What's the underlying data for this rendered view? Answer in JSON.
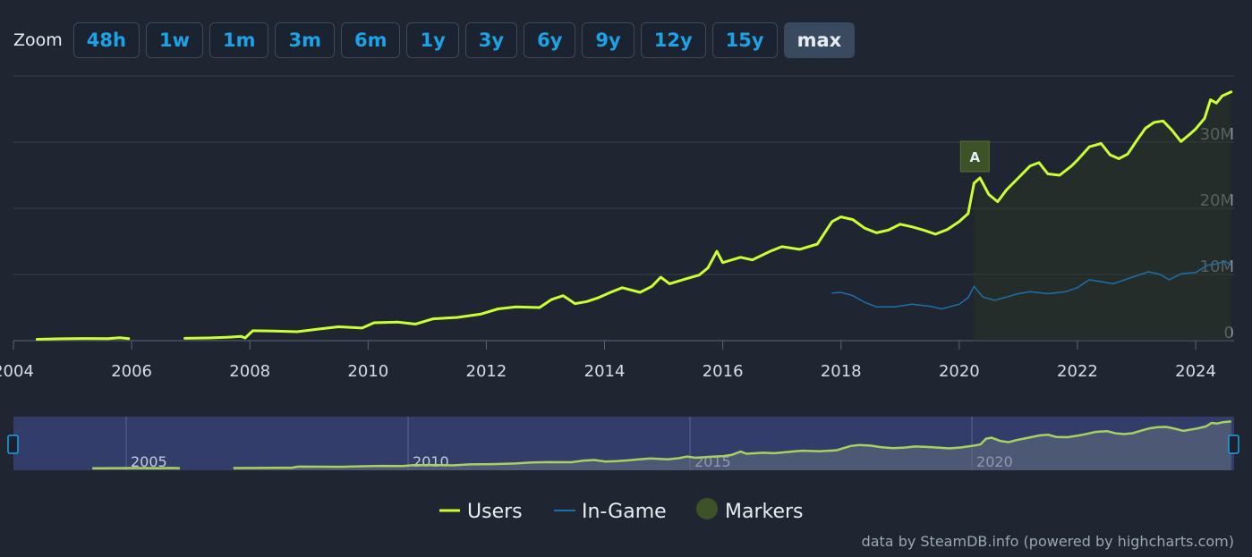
{
  "zoom": {
    "label": "Zoom",
    "buttons": [
      "48h",
      "1w",
      "1m",
      "3m",
      "6m",
      "1y",
      "3y",
      "6y",
      "9y",
      "12y",
      "15y",
      "max"
    ],
    "active": "max"
  },
  "colors": {
    "background": "#1f2631",
    "users": "#ccff33",
    "ingame": "#1f6fa8",
    "marker": "#3e5227",
    "navigator_bg": "#323d6a",
    "navigator_line": "#a9d160",
    "grid": "#3a4350",
    "zoom_text": "#1ea2e6"
  },
  "chart_data": {
    "type": "line",
    "xlim": [
      2004,
      2024.65
    ],
    "ylim": [
      0,
      40000000
    ],
    "x_ticks": [
      "2004",
      "2006",
      "2008",
      "2010",
      "2012",
      "2014",
      "2016",
      "2018",
      "2020",
      "2022",
      "2024"
    ],
    "y_ticks": [
      "0",
      "10M",
      "20M",
      "30M"
    ],
    "series": [
      {
        "name": "Users",
        "segments": [
          [
            [
              2004.4,
              0.2
            ],
            [
              2004.8,
              0.28
            ],
            [
              2005.2,
              0.33
            ],
            [
              2005.6,
              0.3
            ],
            [
              2005.8,
              0.45
            ],
            [
              2005.95,
              0.3
            ]
          ],
          [
            [
              2006.9,
              0.35
            ],
            [
              2007.3,
              0.4
            ],
            [
              2007.6,
              0.5
            ],
            [
              2007.85,
              0.65
            ],
            [
              2007.92,
              0.4
            ],
            [
              2008.05,
              1.5
            ],
            [
              2008.4,
              1.45
            ],
            [
              2008.8,
              1.35
            ],
            [
              2009.2,
              1.8
            ],
            [
              2009.5,
              2.1
            ],
            [
              2009.9,
              1.9
            ],
            [
              2010.1,
              2.7
            ],
            [
              2010.5,
              2.8
            ],
            [
              2010.8,
              2.5
            ],
            [
              2011.1,
              3.3
            ],
            [
              2011.5,
              3.5
            ],
            [
              2011.9,
              4.0
            ],
            [
              2012.2,
              4.8
            ],
            [
              2012.5,
              5.1
            ],
            [
              2012.9,
              5.0
            ],
            [
              2013.1,
              6.2
            ],
            [
              2013.3,
              6.8
            ],
            [
              2013.5,
              5.6
            ],
            [
              2013.7,
              5.9
            ],
            [
              2013.9,
              6.5
            ],
            [
              2014.1,
              7.3
            ],
            [
              2014.3,
              8.0
            ],
            [
              2014.6,
              7.3
            ],
            [
              2014.8,
              8.2
            ],
            [
              2014.95,
              9.6
            ],
            [
              2015.1,
              8.6
            ],
            [
              2015.4,
              9.4
            ],
            [
              2015.6,
              9.9
            ],
            [
              2015.75,
              11.0
            ],
            [
              2015.9,
              13.5
            ],
            [
              2016.0,
              11.8
            ],
            [
              2016.3,
              12.6
            ],
            [
              2016.5,
              12.2
            ],
            [
              2016.8,
              13.5
            ],
            [
              2017.0,
              14.2
            ],
            [
              2017.3,
              13.8
            ],
            [
              2017.6,
              14.6
            ],
            [
              2017.85,
              18.0
            ],
            [
              2018.0,
              18.7
            ],
            [
              2018.2,
              18.3
            ],
            [
              2018.4,
              17.0
            ],
            [
              2018.6,
              16.3
            ],
            [
              2018.8,
              16.7
            ],
            [
              2019.0,
              17.6
            ],
            [
              2019.2,
              17.2
            ],
            [
              2019.4,
              16.7
            ],
            [
              2019.6,
              16.1
            ],
            [
              2019.8,
              16.8
            ],
            [
              2020.0,
              18.0
            ],
            [
              2020.15,
              19.2
            ],
            [
              2020.25,
              23.8
            ],
            [
              2020.35,
              24.6
            ],
            [
              2020.5,
              22.1
            ],
            [
              2020.65,
              21.0
            ],
            [
              2020.8,
              22.8
            ],
            [
              2021.0,
              24.6
            ],
            [
              2021.2,
              26.4
            ],
            [
              2021.35,
              26.9
            ],
            [
              2021.5,
              25.2
            ],
            [
              2021.7,
              25.0
            ],
            [
              2021.9,
              26.4
            ],
            [
              2022.0,
              27.3
            ],
            [
              2022.2,
              29.3
            ],
            [
              2022.4,
              29.8
            ],
            [
              2022.55,
              28.1
            ],
            [
              2022.7,
              27.5
            ],
            [
              2022.85,
              28.2
            ],
            [
              2023.0,
              30.2
            ],
            [
              2023.15,
              32.1
            ],
            [
              2023.3,
              33.0
            ],
            [
              2023.45,
              33.2
            ],
            [
              2023.6,
              31.8
            ],
            [
              2023.75,
              30.1
            ],
            [
              2023.9,
              31.2
            ],
            [
              2024.0,
              32.0
            ],
            [
              2024.15,
              33.6
            ],
            [
              2024.25,
              36.4
            ],
            [
              2024.35,
              35.9
            ],
            [
              2024.45,
              37.0
            ],
            [
              2024.6,
              37.6
            ]
          ]
        ]
      },
      {
        "name": "In-Game",
        "segments": [
          [
            [
              2017.85,
              7.2
            ],
            [
              2018.0,
              7.3
            ],
            [
              2018.2,
              6.8
            ],
            [
              2018.4,
              5.8
            ],
            [
              2018.6,
              5.1
            ],
            [
              2018.9,
              5.1
            ],
            [
              2019.2,
              5.5
            ],
            [
              2019.5,
              5.2
            ],
            [
              2019.7,
              4.8
            ],
            [
              2020.0,
              5.5
            ],
            [
              2020.15,
              6.5
            ],
            [
              2020.25,
              8.2
            ],
            [
              2020.4,
              6.6
            ],
            [
              2020.6,
              6.1
            ],
            [
              2020.8,
              6.6
            ],
            [
              2021.0,
              7.1
            ],
            [
              2021.2,
              7.4
            ],
            [
              2021.5,
              7.1
            ],
            [
              2021.8,
              7.4
            ],
            [
              2022.0,
              8.0
            ],
            [
              2022.2,
              9.2
            ],
            [
              2022.4,
              8.9
            ],
            [
              2022.6,
              8.6
            ],
            [
              2022.8,
              9.2
            ],
            [
              2023.0,
              9.8
            ],
            [
              2023.2,
              10.4
            ],
            [
              2023.4,
              10.0
            ],
            [
              2023.55,
              9.2
            ],
            [
              2023.75,
              10.1
            ],
            [
              2024.0,
              10.3
            ],
            [
              2024.2,
              11.4
            ],
            [
              2024.35,
              11.6
            ],
            [
              2024.5,
              12.0
            ],
            [
              2024.6,
              11.4
            ]
          ]
        ]
      }
    ],
    "y_unit_multiplier": 1000000,
    "markers": [
      {
        "label": "A",
        "x": 2020.25
      }
    ],
    "navigator": {
      "xlim": [
        2003.0,
        2024.65
      ],
      "ticks": [
        "2005",
        "2010",
        "2015",
        "2020"
      ]
    },
    "legend": [
      {
        "name": "Users"
      },
      {
        "name": "In-Game"
      },
      {
        "name": "Markers"
      }
    ],
    "legend_position": "bottom-center",
    "credit": "data by SteamDB.info (powered by highcharts.com)"
  }
}
